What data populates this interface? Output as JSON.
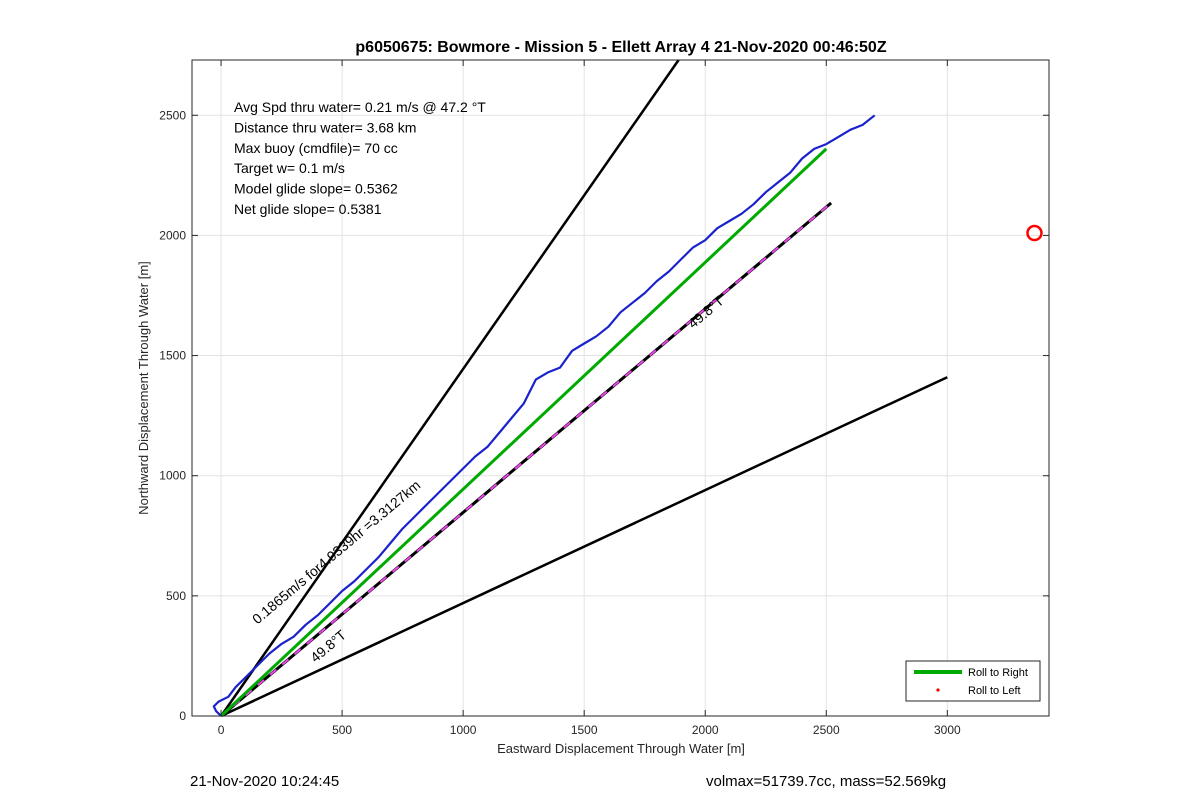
{
  "footer": {
    "timestamp": "21-Nov-2020 10:24:45",
    "volmax_mass": "volmax=51739.7cc, mass=52.569kg"
  },
  "chart_data": {
    "type": "line",
    "title": "p6050675: Bowmore - Mission 5 - Ellett Array 4 21-Nov-2020 00:46:50Z",
    "xlabel": "Eastward Displacement Through Water [m]",
    "ylabel": "Northward Displacement Through Water [m]",
    "xlim": [
      -120,
      3420
    ],
    "ylim": [
      0,
      2730
    ],
    "xticks": [
      0,
      500,
      1000,
      1500,
      2000,
      2500,
      3000
    ],
    "yticks": [
      0,
      500,
      1000,
      1500,
      2000,
      2500
    ],
    "grid": true,
    "info_lines": [
      "Avg Spd thru water=  0.21 m/s @  47.2 °T",
      "Distance thru water=  3.68 km",
      "Max buoy (cmdfile)= 70 cc",
      "Target w= 0.1 m/s",
      "Model glide slope= 0.5362",
      "Net glide slope= 0.5381"
    ],
    "annotations": [
      {
        "text": "0.1865m/s for4.9339hr =3.3127km",
        "x": 150,
        "y": 380
      },
      {
        "text": "49.8°T",
        "x": 1950,
        "y": 1610
      },
      {
        "text": "49.8°T",
        "x": 390,
        "y": 220
      }
    ],
    "legend": {
      "position": "bottom-right",
      "entries": [
        {
          "label": "Roll to Right",
          "color": "#00aa00",
          "style": "line"
        },
        {
          "label": "Roll to Left",
          "color": "#ff0000",
          "style": "dot"
        }
      ]
    },
    "series": [
      {
        "style": "solid",
        "color": "#000000",
        "x": [
          0,
          1890
        ],
        "y": [
          0,
          2730
        ]
      },
      {
        "style": "solid",
        "color": "#000000",
        "x": [
          0,
          3000
        ],
        "y": [
          0,
          1410
        ]
      },
      {
        "style": "dashed-magenta-black",
        "color": "#000000",
        "dash_color": "#ee44ee",
        "x": [
          0,
          2520
        ],
        "y": [
          0,
          2135
        ]
      },
      {
        "style": "solid",
        "color": "#00aa00",
        "x": [
          0,
          2500
        ],
        "y": [
          0,
          2360
        ]
      },
      {
        "style": "solid",
        "color": "#1a22cc",
        "x": [
          0,
          -20,
          -30,
          -10,
          30,
          60,
          100,
          150,
          200,
          250,
          300,
          350,
          400,
          450,
          500,
          550,
          600,
          650,
          700,
          750,
          800,
          850,
          900,
          950,
          1000,
          1050,
          1100,
          1150,
          1200,
          1250,
          1300,
          1350,
          1400,
          1450,
          1500,
          1550,
          1600,
          1650,
          1700,
          1750,
          1800,
          1850,
          1900,
          1950,
          2000,
          2050,
          2100,
          2150,
          2200,
          2250,
          2300,
          2350,
          2400,
          2450,
          2500,
          2550,
          2600,
          2650,
          2700
        ],
        "y": [
          0,
          20,
          40,
          60,
          80,
          120,
          160,
          210,
          260,
          300,
          330,
          380,
          420,
          470,
          520,
          560,
          610,
          660,
          720,
          780,
          830,
          880,
          930,
          980,
          1030,
          1080,
          1120,
          1180,
          1240,
          1300,
          1400,
          1430,
          1450,
          1520,
          1550,
          1580,
          1620,
          1680,
          1720,
          1760,
          1810,
          1850,
          1900,
          1950,
          1980,
          2030,
          2060,
          2090,
          2130,
          2180,
          2220,
          2260,
          2320,
          2360,
          2380,
          2410,
          2440,
          2460,
          2500
        ]
      },
      {
        "style": "marker",
        "marker": "circle",
        "color": "#ff0000",
        "x": [
          3360
        ],
        "y": [
          2010
        ]
      }
    ]
  }
}
